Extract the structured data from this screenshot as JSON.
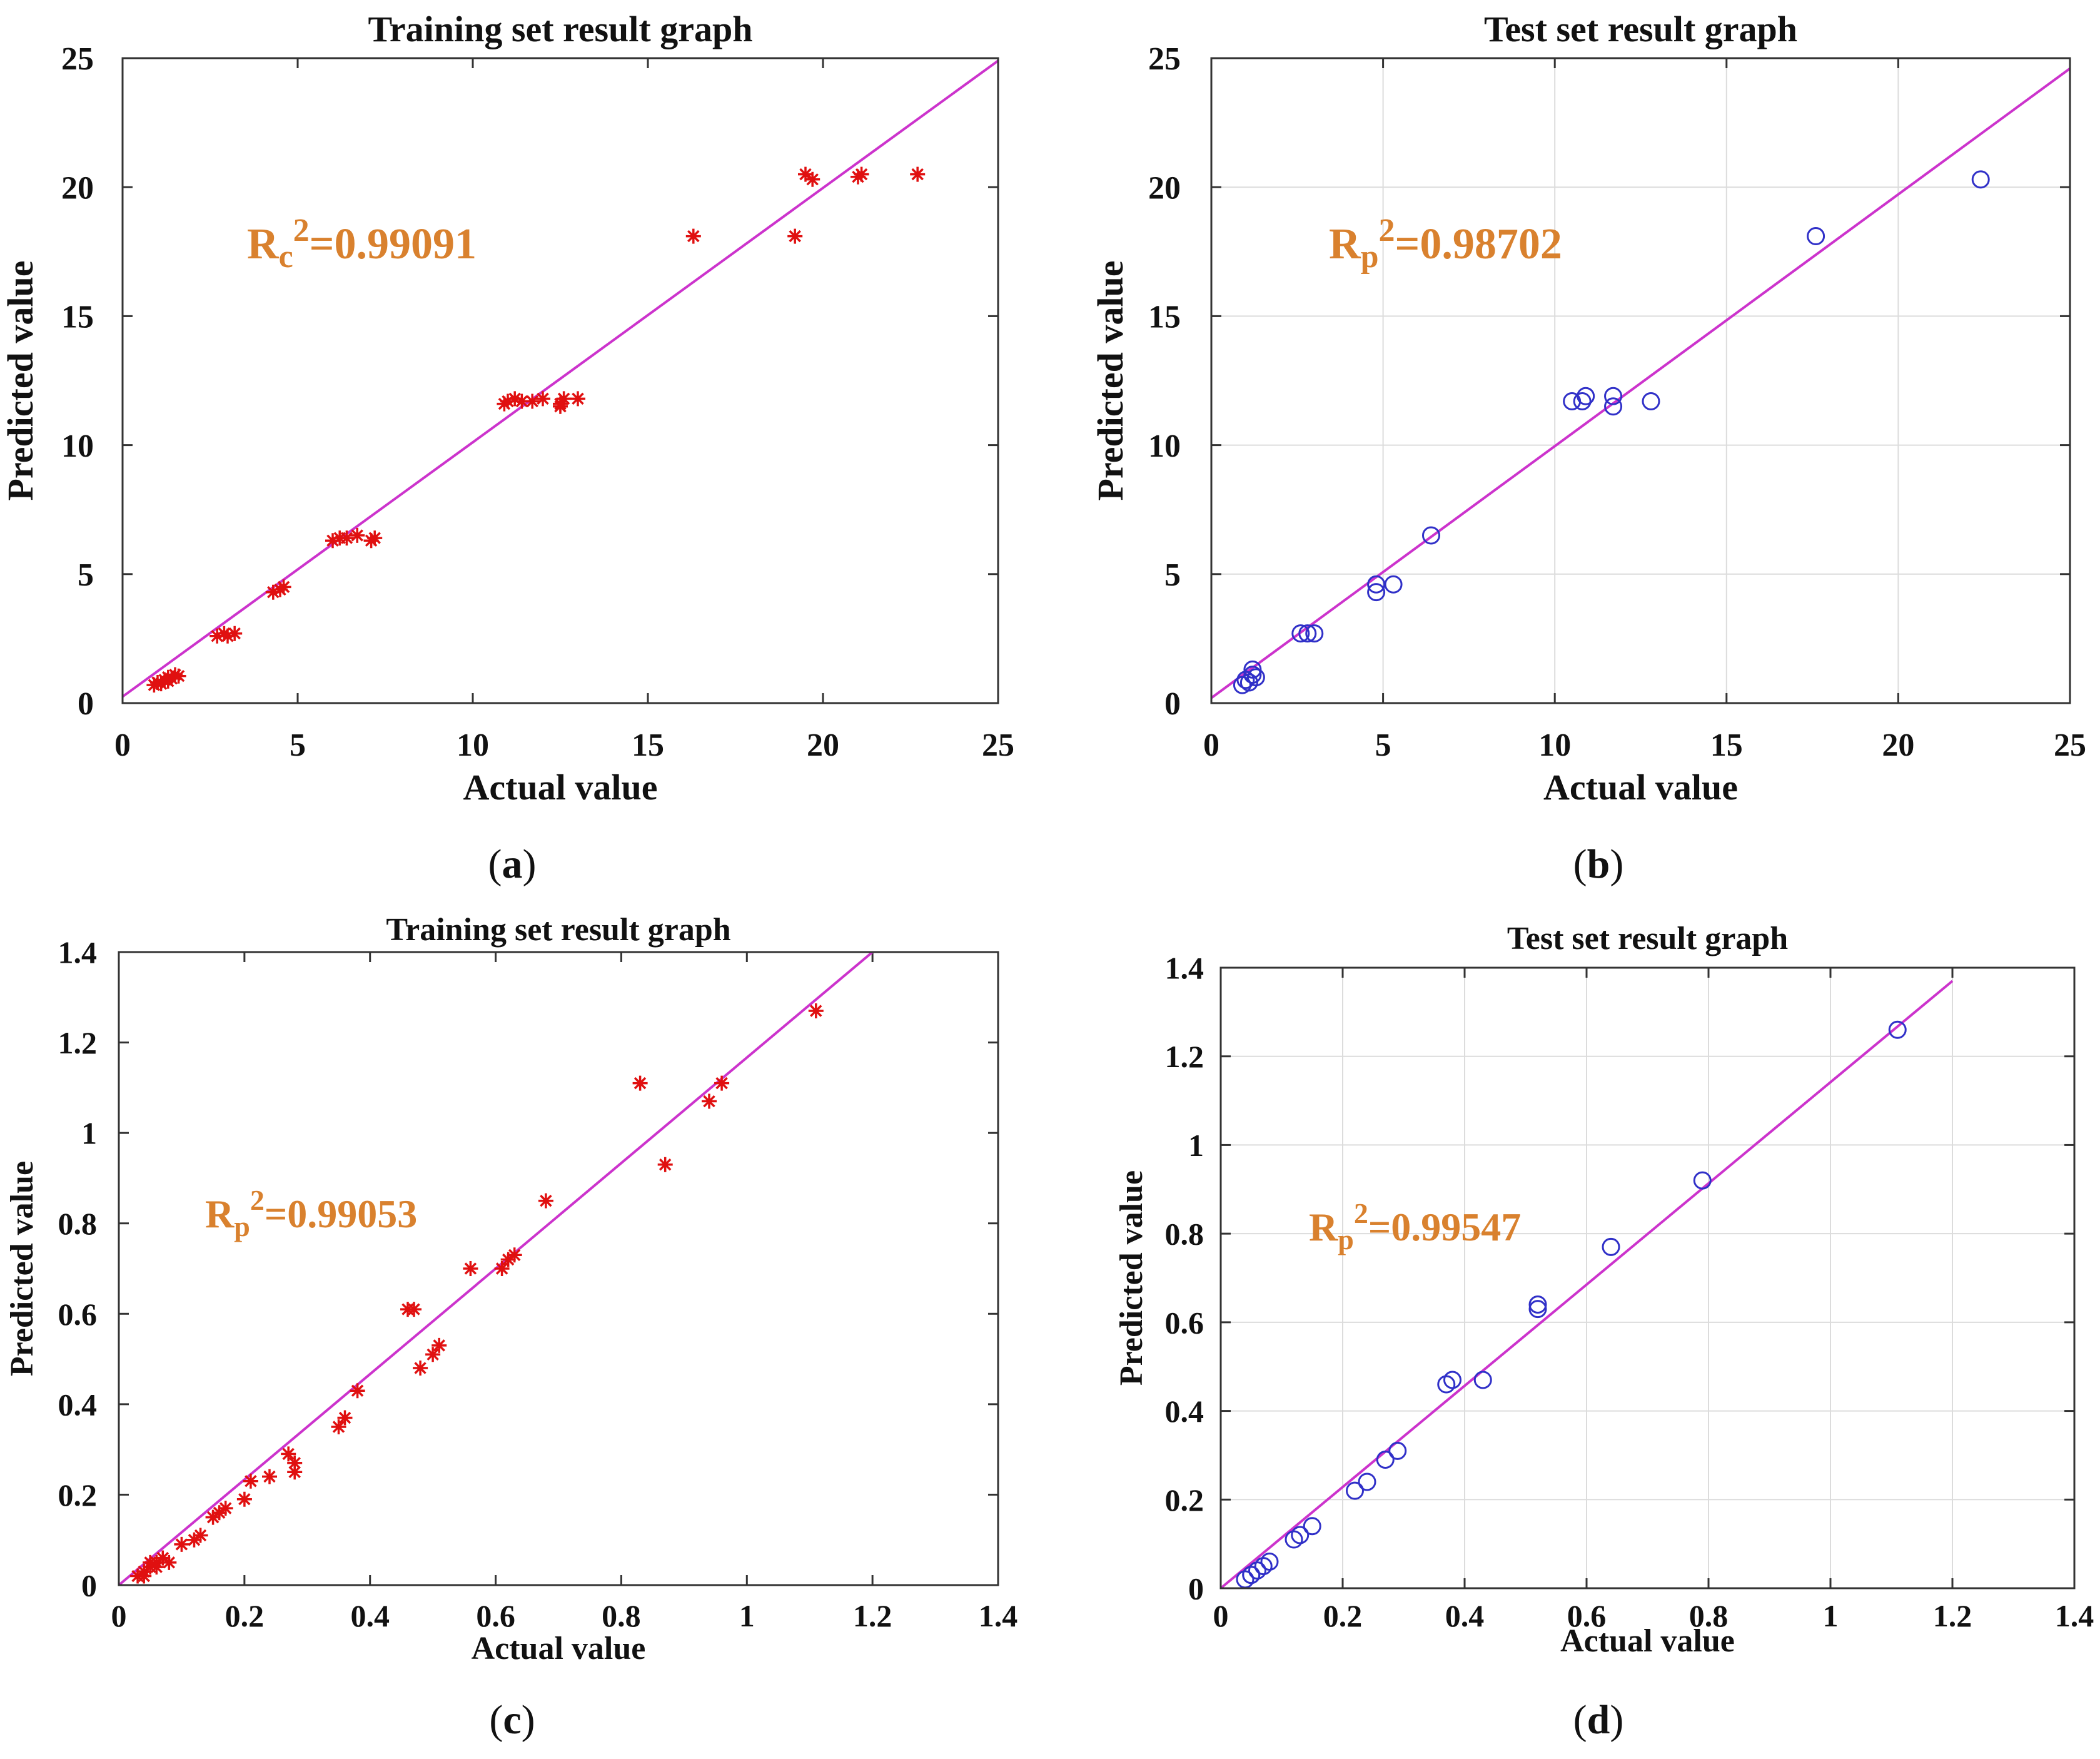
{
  "colors": {
    "fit_line": "#cc33cc",
    "star_marker": "#e01010",
    "circle_marker": "#3030c8",
    "r2_text": "#d9812e",
    "grid": "#dcdcdc",
    "axes": "#333333"
  },
  "chart_data": [
    {
      "id": "a",
      "type": "scatter",
      "title": "Training set result graph",
      "xlabel": "Actual value",
      "ylabel": "Predicted value",
      "xlim": [
        0,
        25
      ],
      "ylim": [
        0,
        25
      ],
      "xticks": [
        "0",
        "5",
        "10",
        "15",
        "20",
        "25"
      ],
      "yticks": [
        "0",
        "5",
        "10",
        "15",
        "20",
        "25"
      ],
      "grid": false,
      "marker": "star",
      "r2": {
        "symbol": "R",
        "subscript": "c",
        "superscript": "2",
        "value": "=0.99091"
      },
      "subfigure_label": "a",
      "fit_line": {
        "x": [
          0,
          25
        ],
        "y": [
          0.25,
          24.9
        ]
      },
      "points": [
        [
          0.9,
          0.7
        ],
        [
          1.0,
          0.8
        ],
        [
          1.1,
          0.75
        ],
        [
          1.2,
          0.9
        ],
        [
          1.3,
          1.0
        ],
        [
          1.4,
          0.95
        ],
        [
          1.5,
          1.1
        ],
        [
          1.3,
          0.85
        ],
        [
          1.6,
          1.05
        ],
        [
          2.7,
          2.6
        ],
        [
          2.9,
          2.7
        ],
        [
          3.0,
          2.6
        ],
        [
          3.2,
          2.7
        ],
        [
          4.3,
          4.3
        ],
        [
          4.6,
          4.5
        ],
        [
          4.5,
          4.4
        ],
        [
          6.0,
          6.3
        ],
        [
          6.2,
          6.4
        ],
        [
          6.4,
          6.4
        ],
        [
          6.7,
          6.5
        ],
        [
          7.1,
          6.3
        ],
        [
          7.2,
          6.4
        ],
        [
          10.9,
          11.6
        ],
        [
          11.0,
          11.7
        ],
        [
          11.2,
          11.8
        ],
        [
          11.4,
          11.7
        ],
        [
          11.7,
          11.7
        ],
        [
          12.0,
          11.8
        ],
        [
          12.5,
          11.6
        ],
        [
          12.6,
          11.8
        ],
        [
          13.0,
          11.8
        ],
        [
          12.5,
          11.5
        ],
        [
          16.3,
          18.1
        ],
        [
          19.2,
          18.1
        ],
        [
          19.5,
          20.5
        ],
        [
          19.7,
          20.3
        ],
        [
          21.0,
          20.4
        ],
        [
          21.1,
          20.5
        ],
        [
          22.7,
          20.5
        ]
      ]
    },
    {
      "id": "b",
      "type": "scatter",
      "title": "Test set result graph",
      "xlabel": "Actual value",
      "ylabel": "Predicted value",
      "xlim": [
        0,
        25
      ],
      "ylim": [
        0,
        25
      ],
      "xticks": [
        "0",
        "5",
        "10",
        "15",
        "20",
        "25"
      ],
      "yticks": [
        "0",
        "5",
        "10",
        "15",
        "20",
        "25"
      ],
      "grid": true,
      "marker": "circle",
      "r2": {
        "symbol": "R",
        "subscript": "p",
        "superscript": "2",
        "value": "=0.98702"
      },
      "subfigure_label": "b",
      "fit_line": {
        "x": [
          0,
          25
        ],
        "y": [
          0.2,
          24.6
        ]
      },
      "points": [
        [
          0.9,
          0.7
        ],
        [
          1.0,
          0.9
        ],
        [
          1.2,
          1.1
        ],
        [
          1.2,
          1.3
        ],
        [
          1.3,
          1.0
        ],
        [
          1.1,
          0.8
        ],
        [
          2.6,
          2.7
        ],
        [
          2.8,
          2.7
        ],
        [
          3.0,
          2.7
        ],
        [
          4.8,
          4.3
        ],
        [
          4.8,
          4.6
        ],
        [
          5.3,
          4.6
        ],
        [
          6.4,
          6.5
        ],
        [
          10.5,
          11.7
        ],
        [
          10.8,
          11.7
        ],
        [
          10.9,
          11.9
        ],
        [
          11.7,
          11.9
        ],
        [
          11.7,
          11.5
        ],
        [
          12.8,
          11.7
        ],
        [
          17.6,
          18.1
        ],
        [
          22.4,
          20.3
        ]
      ]
    },
    {
      "id": "c",
      "type": "scatter",
      "title": "Training set result graph",
      "xlabel": "Actual value",
      "ylabel": "Predicted value",
      "xlim": [
        0,
        1.4
      ],
      "ylim": [
        0,
        1.4
      ],
      "xticks": [
        "0",
        "0.2",
        "0.4",
        "0.6",
        "0.8",
        "1",
        "1.2",
        "1.4"
      ],
      "yticks": [
        "0",
        "0.2",
        "0.4",
        "0.6",
        "0.8",
        "1",
        "1.2",
        "1.4"
      ],
      "grid": false,
      "marker": "star",
      "r2": {
        "symbol": "R",
        "subscript": "p",
        "superscript": "2",
        "value": "=0.99053"
      },
      "subfigure_label": "c",
      "fit_line": {
        "x": [
          0,
          1.2
        ],
        "y": [
          0,
          1.4
        ]
      },
      "points": [
        [
          0.03,
          0.02
        ],
        [
          0.04,
          0.03
        ],
        [
          0.05,
          0.04
        ],
        [
          0.05,
          0.05
        ],
        [
          0.06,
          0.05
        ],
        [
          0.07,
          0.06
        ],
        [
          0.06,
          0.04
        ],
        [
          0.08,
          0.05
        ],
        [
          0.04,
          0.02
        ],
        [
          0.1,
          0.09
        ],
        [
          0.12,
          0.1
        ],
        [
          0.13,
          0.11
        ],
        [
          0.15,
          0.15
        ],
        [
          0.16,
          0.16
        ],
        [
          0.17,
          0.17
        ],
        [
          0.2,
          0.19
        ],
        [
          0.21,
          0.23
        ],
        [
          0.24,
          0.24
        ],
        [
          0.27,
          0.29
        ],
        [
          0.28,
          0.27
        ],
        [
          0.28,
          0.25
        ],
        [
          0.35,
          0.35
        ],
        [
          0.36,
          0.37
        ],
        [
          0.38,
          0.43
        ],
        [
          0.46,
          0.61
        ],
        [
          0.47,
          0.61
        ],
        [
          0.48,
          0.48
        ],
        [
          0.5,
          0.51
        ],
        [
          0.51,
          0.53
        ],
        [
          0.56,
          0.7
        ],
        [
          0.61,
          0.7
        ],
        [
          0.62,
          0.72
        ],
        [
          0.63,
          0.73
        ],
        [
          0.68,
          0.85
        ],
        [
          0.83,
          1.11
        ],
        [
          0.87,
          0.93
        ],
        [
          0.94,
          1.07
        ],
        [
          0.96,
          1.11
        ],
        [
          1.11,
          1.27
        ]
      ]
    },
    {
      "id": "d",
      "type": "scatter",
      "title": "Test set result graph",
      "xlabel": "Actual value",
      "ylabel": "Predicted value",
      "xlim": [
        0,
        1.4
      ],
      "ylim": [
        0,
        1.4
      ],
      "xticks": [
        "0",
        "0.2",
        "0.4",
        "0.6",
        "0.8",
        "1",
        "1.2",
        "1.4"
      ],
      "yticks": [
        "0",
        "0.2",
        "0.4",
        "0.6",
        "0.8",
        "1",
        "1.2",
        "1.4"
      ],
      "grid": true,
      "marker": "circle",
      "r2": {
        "symbol": "R",
        "subscript": "p",
        "superscript": "2",
        "value": "=0.99547"
      },
      "subfigure_label": "d",
      "fit_line": {
        "x": [
          0,
          1.2
        ],
        "y": [
          0,
          1.37
        ]
      },
      "points": [
        [
          0.04,
          0.02
        ],
        [
          0.05,
          0.03
        ],
        [
          0.06,
          0.04
        ],
        [
          0.07,
          0.05
        ],
        [
          0.05,
          0.03
        ],
        [
          0.08,
          0.06
        ],
        [
          0.12,
          0.11
        ],
        [
          0.13,
          0.12
        ],
        [
          0.15,
          0.14
        ],
        [
          0.22,
          0.22
        ],
        [
          0.24,
          0.24
        ],
        [
          0.27,
          0.29
        ],
        [
          0.29,
          0.31
        ],
        [
          0.37,
          0.46
        ],
        [
          0.38,
          0.47
        ],
        [
          0.43,
          0.47
        ],
        [
          0.52,
          0.63
        ],
        [
          0.52,
          0.64
        ],
        [
          0.64,
          0.77
        ],
        [
          0.79,
          0.92
        ],
        [
          1.11,
          1.26
        ]
      ]
    }
  ]
}
